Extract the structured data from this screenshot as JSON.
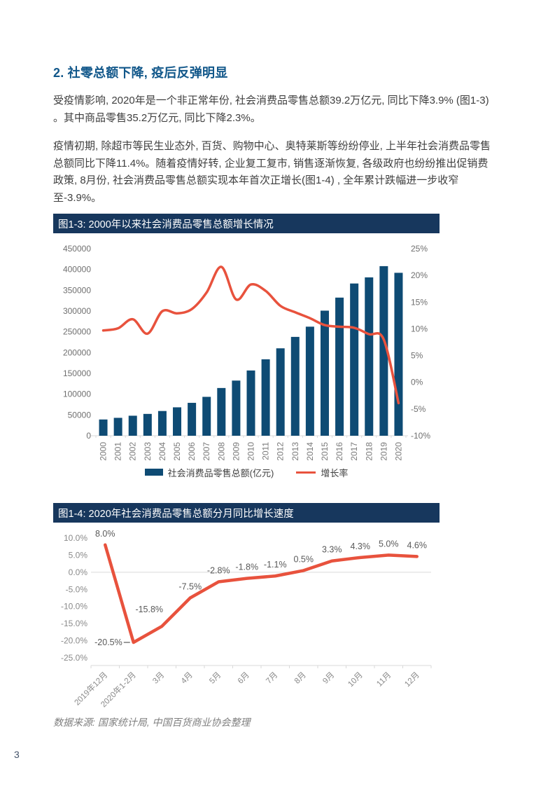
{
  "page": {
    "number": "3"
  },
  "colors": {
    "title_bar_navy": "#17375D",
    "bar_blue": "#0E4B74",
    "line_red": "#E8523D",
    "heading_blue": "#11578A",
    "axis_gray": "#6f6f6f",
    "grid_gray": "#d9d9d9",
    "data_label_gray": "#595959"
  },
  "heading": "2. 社零总额下降, 疫后反弹明显",
  "paragraphs": [
    "受疫情影响, 2020年是一个非正常年份, 社会消费品零售总额39.2万亿元, 同比下降3.9% (图1-3) 。其中商品零售35.2万亿元, 同比下降2.3%。",
    "疫情初期, 除超市等民生业态外, 百货、购物中心、奥特莱斯等纷纷停业, 上半年社会消费品零售总额同比下降11.4%。随着疫情好转, 企业复工复市, 销售逐渐恢复, 各级政府也纷纷推出促销费政策, 8月份, 社会消费品零售总额实现本年首次正增长(图1-4) , 全年累计跌幅进一步收窄至-3.9%。"
  ],
  "source_note": "数据来源: 国家统计局, 中国百货商业协会整理",
  "chart_data": [
    {
      "type": "bar",
      "title": "图1-3: 2000年以来社会消费品零售总额增长情况",
      "categories": [
        "2000",
        "2001",
        "2002",
        "2003",
        "2004",
        "2005",
        "2006",
        "2007",
        "2008",
        "2009",
        "2010",
        "2011",
        "2012",
        "2013",
        "2014",
        "2015",
        "2016",
        "2017",
        "2018",
        "2019",
        "2020"
      ],
      "series": [
        {
          "name": "社会消费品零售总额(亿元)",
          "type": "bar",
          "axis": "left",
          "values": [
            39106,
            43055,
            48136,
            52516,
            59501,
            68353,
            79145,
            93572,
            114830,
            132678,
            156998,
            183919,
            210307,
            237810,
            262394,
            300931,
            332316,
            366262,
            380987,
            408017,
            391981
          ]
        },
        {
          "name": "增长率",
          "type": "line",
          "axis": "right",
          "values": [
            9.7,
            10.1,
            11.8,
            9.1,
            13.3,
            12.9,
            13.7,
            16.8,
            21.6,
            15.5,
            18.3,
            17.1,
            14.3,
            13.1,
            12.0,
            10.7,
            10.4,
            10.2,
            9.0,
            8.0,
            -3.9
          ]
        }
      ],
      "left_axis": {
        "min": 0,
        "max": 450000,
        "step": 50000
      },
      "right_axis": {
        "min": -10,
        "max": 25,
        "step": 5,
        "suffix": "%"
      },
      "legend_position": "bottom",
      "grid": false
    },
    {
      "type": "line",
      "title": "图1-4: 2020年社会消费品零售总额分月同比增长速度",
      "categories": [
        "2019年12月",
        "2020年1-2月",
        "3月",
        "4月",
        "5月",
        "6月",
        "7月",
        "8月",
        "9月",
        "10月",
        "11月",
        "12月"
      ],
      "values": [
        8.0,
        -20.5,
        -15.8,
        -7.5,
        -2.8,
        -1.8,
        -1.1,
        0.5,
        3.3,
        4.3,
        5.0,
        4.6
      ],
      "labels": [
        "8.0%",
        "-20.5%",
        "-15.8%",
        "-7.5%",
        "-2.8%",
        "-1.8%",
        "-1.1%",
        "0.5%",
        "3.3%",
        "4.3%",
        "5.0%",
        "4.6%"
      ],
      "y_axis": {
        "min": -25,
        "max": 10,
        "step": 5,
        "suffix": "%"
      },
      "zero_gridline": true,
      "legend_position": "none"
    }
  ]
}
